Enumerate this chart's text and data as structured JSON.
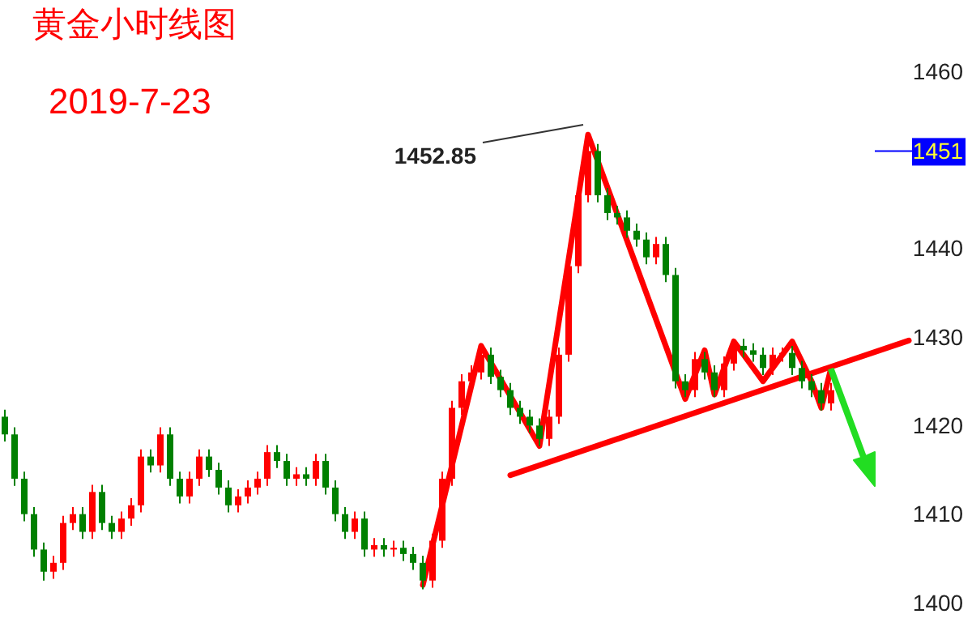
{
  "chart_data": {
    "type": "candlestick",
    "title": "黄金小时线图",
    "subtitle": "2019-7-23",
    "ylim": [
      1400,
      1460
    ],
    "yticks": [
      1400,
      1410,
      1420,
      1430,
      1440,
      1460
    ],
    "tick_labels": "y",
    "grid": false,
    "annotations": [
      "1452.85"
    ],
    "ref_lines": [
      {
        "axis": "y",
        "value": 1451,
        "label": "1451",
        "color": "#0000ff"
      }
    ],
    "categories": [
      null,
      null,
      null,
      null,
      null,
      null,
      null,
      null,
      null,
      null,
      null,
      null,
      null,
      null,
      null,
      null,
      null,
      null,
      null,
      null,
      null,
      null,
      null,
      null,
      null,
      null,
      null,
      null,
      null,
      null,
      null,
      null,
      null,
      null,
      null,
      null,
      null,
      null,
      null,
      null,
      null,
      null,
      null,
      null,
      null,
      null,
      null,
      null,
      null,
      null,
      null,
      null,
      null,
      null,
      null,
      null,
      null,
      null,
      null,
      null,
      null,
      null,
      null,
      null,
      null,
      null,
      null,
      null,
      null,
      null,
      null,
      null,
      null,
      null,
      null,
      null,
      null,
      null,
      null,
      null,
      null,
      null,
      null,
      null,
      null,
      null,
      null,
      null,
      null,
      null,
      null,
      null,
      null,
      null
    ],
    "ohlc": [
      [
        1421,
        1421.8,
        1418.2,
        1419
      ],
      [
        1419,
        1419.8,
        1413.2,
        1414
      ],
      [
        1414,
        1414.8,
        1409.2,
        1410
      ],
      [
        1410,
        1410.8,
        1405.2,
        1406
      ],
      [
        1406,
        1406.8,
        1402.5,
        1403.5
      ],
      [
        1403.5,
        1405.3,
        1402.7,
        1404.5
      ],
      [
        1404.5,
        1409.8,
        1403.7,
        1409
      ],
      [
        1409,
        1410.8,
        1408.2,
        1410
      ],
      [
        1410,
        1410.8,
        1407.2,
        1408
      ],
      [
        1408,
        1413.3,
        1407.2,
        1412.5
      ],
      [
        1412.5,
        1413.3,
        1408.2,
        1409
      ],
      [
        1409,
        1409.8,
        1407.2,
        1408
      ],
      [
        1408,
        1410.3,
        1407.2,
        1409.5
      ],
      [
        1409.5,
        1411.8,
        1408.7,
        1411
      ],
      [
        1411,
        1417.3,
        1410.2,
        1416.5
      ],
      [
        1416.5,
        1417.3,
        1414.7,
        1415.5
      ],
      [
        1415.5,
        1419.8,
        1414.7,
        1419
      ],
      [
        1419,
        1419.8,
        1413.2,
        1414
      ],
      [
        1414,
        1414.8,
        1411.2,
        1412
      ],
      [
        1412,
        1414.8,
        1411.2,
        1414
      ],
      [
        1414,
        1417.3,
        1413.2,
        1416.5
      ],
      [
        1416.5,
        1417.3,
        1414.2,
        1415
      ],
      [
        1415,
        1415.8,
        1412.2,
        1413
      ],
      [
        1413,
        1413.8,
        1410.2,
        1411
      ],
      [
        1411,
        1412.8,
        1410.2,
        1412
      ],
      [
        1412,
        1413.8,
        1411.2,
        1413
      ],
      [
        1413,
        1414.8,
        1412.2,
        1414
      ],
      [
        1414,
        1417.8,
        1413.2,
        1417
      ],
      [
        1417,
        1417.8,
        1415.2,
        1416
      ],
      [
        1416,
        1416.8,
        1413.2,
        1414
      ],
      [
        1414,
        1415.3,
        1413.2,
        1414.5
      ],
      [
        1414.5,
        1415.3,
        1413.2,
        1414
      ],
      [
        1414,
        1416.8,
        1413.2,
        1416
      ],
      [
        1416,
        1416.8,
        1412.2,
        1413
      ],
      [
        1413,
        1413.8,
        1409.2,
        1410
      ],
      [
        1410,
        1410.8,
        1407.2,
        1408
      ],
      [
        1408,
        1410.3,
        1407.2,
        1409.5
      ],
      [
        1409.5,
        1410.3,
        1405.2,
        1406
      ],
      [
        1406,
        1407.3,
        1405.2,
        1406.5
      ],
      [
        1406.5,
        1407.3,
        1405.2,
        1406
      ],
      [
        1406,
        1407,
        1405.2,
        1406.2
      ],
      [
        1406.2,
        1407,
        1404.7,
        1405.5
      ],
      [
        1405.5,
        1406.3,
        1403.7,
        1404.5
      ],
      [
        1404.5,
        1405.3,
        1401.5,
        1402.5
      ],
      [
        1402.5,
        1407.8,
        1401.7,
        1407
      ],
      [
        1407,
        1414.8,
        1406.2,
        1414
      ],
      [
        1414,
        1422.8,
        1413.2,
        1422
      ],
      [
        1422,
        1425.8,
        1421.2,
        1425
      ],
      [
        1425,
        1426.8,
        1424.2,
        1426
      ],
      [
        1426,
        1428.8,
        1425.2,
        1428
      ],
      [
        1428,
        1428.8,
        1424.7,
        1425.5
      ],
      [
        1425.5,
        1426.3,
        1423.2,
        1424
      ],
      [
        1424,
        1424.8,
        1421.2,
        1422
      ],
      [
        1422,
        1422.8,
        1420.2,
        1421
      ],
      [
        1421,
        1421.8,
        1419.2,
        1420
      ],
      [
        1420,
        1420.8,
        1417.7,
        1418.5
      ],
      [
        1418.5,
        1421.8,
        1417.7,
        1421
      ],
      [
        1421,
        1428.8,
        1420.2,
        1428
      ],
      [
        1428,
        1438.8,
        1427.2,
        1438
      ],
      [
        1438,
        1446.8,
        1437.2,
        1446
      ],
      [
        1446,
        1452.85,
        1445.2,
        1451
      ],
      [
        1451,
        1451.8,
        1445.2,
        1446
      ],
      [
        1446,
        1446.8,
        1443.2,
        1444
      ],
      [
        1444,
        1444.8,
        1442.7,
        1443.5
      ],
      [
        1443.5,
        1444.3,
        1441.2,
        1442
      ],
      [
        1442,
        1442.8,
        1440.2,
        1441
      ],
      [
        1441,
        1441.8,
        1438.2,
        1439
      ],
      [
        1439,
        1441.3,
        1438.2,
        1440.5
      ],
      [
        1440.5,
        1441.3,
        1436.2,
        1437
      ],
      [
        1437,
        1437.8,
        1424.2,
        1425
      ],
      [
        1425,
        1425.8,
        1423.2,
        1424
      ],
      [
        1424,
        1428.3,
        1423.2,
        1427.5
      ],
      [
        1427.5,
        1428.3,
        1425.2,
        1426
      ],
      [
        1426,
        1426.8,
        1423.2,
        1424
      ],
      [
        1424,
        1427.8,
        1423.2,
        1427
      ],
      [
        1427,
        1429.8,
        1426.2,
        1429
      ],
      [
        1429,
        1429.8,
        1427.7,
        1428.5
      ],
      [
        1428.5,
        1429.3,
        1427.2,
        1428
      ],
      [
        1428,
        1428.8,
        1425.7,
        1426.5
      ],
      [
        1426.5,
        1428.8,
        1425.7,
        1428
      ],
      [
        1428,
        1428.8,
        1427.2,
        1428.2
      ],
      [
        1428.2,
        1429,
        1425.7,
        1426.5
      ],
      [
        1426.5,
        1427.3,
        1424.2,
        1425
      ],
      [
        1425,
        1425.8,
        1423.2,
        1424
      ],
      [
        1424,
        1424.8,
        1421.7,
        1422.5
      ],
      [
        1422.5,
        1424.8,
        1421.7,
        1424
      ],
      null,
      null,
      null,
      null,
      null,
      null,
      null,
      null
    ],
    "colors": [
      "#008000",
      "#008000",
      "#008000",
      "#008000",
      "#008000",
      "#ff0000",
      "#ff0000",
      "#ff0000",
      "#008000",
      "#ff0000",
      "#008000",
      "#008000",
      "#ff0000",
      "#ff0000",
      "#ff0000",
      "#008000",
      "#ff0000",
      "#008000",
      "#008000",
      "#ff0000",
      "#ff0000",
      "#008000",
      "#008000",
      "#008000",
      "#ff0000",
      "#ff0000",
      "#ff0000",
      "#ff0000",
      "#008000",
      "#008000",
      "#ff0000",
      "#008000",
      "#ff0000",
      "#008000",
      "#008000",
      "#008000",
      "#ff0000",
      "#008000",
      "#ff0000",
      "#008000",
      "#ff0000",
      "#008000",
      "#008000",
      "#008000",
      "#ff0000",
      "#ff0000",
      "#ff0000",
      "#ff0000",
      "#ff0000",
      "#ff0000",
      "#008000",
      "#008000",
      "#008000",
      "#008000",
      "#008000",
      "#008000",
      "#ff0000",
      "#ff0000",
      "#ff0000",
      "#ff0000",
      "#ff0000",
      "#008000",
      "#008000",
      "#008000",
      "#008000",
      "#008000",
      "#008000",
      "#ff0000",
      "#008000",
      "#008000",
      "#008000",
      "#ff0000",
      "#008000",
      "#008000",
      "#ff0000",
      "#ff0000",
      "#008000",
      "#008000",
      "#008000",
      "#ff0000",
      "#ff0000",
      "#008000",
      "#008000",
      "#008000",
      "#008000",
      "#ff0000",
      null,
      null,
      null,
      null,
      null,
      null,
      null,
      null
    ],
    "series": [
      {
        "type": "line",
        "color": "#ff0000",
        "values": [
          null,
          null,
          null,
          null,
          null,
          null,
          null,
          null,
          null,
          null,
          null,
          null,
          null,
          null,
          null,
          null,
          null,
          null,
          null,
          null,
          null,
          null,
          null,
          null,
          null,
          null,
          null,
          null,
          null,
          null,
          null,
          null,
          null,
          null,
          null,
          null,
          null,
          null,
          null,
          null,
          null,
          null,
          null,
          1402,
          null,
          null,
          null,
          null,
          null,
          1429,
          null,
          null,
          null,
          null,
          null,
          1417.7,
          null,
          null,
          null,
          null,
          1452.85,
          null,
          null,
          null,
          null,
          null,
          null,
          null,
          null,
          null,
          1423,
          null,
          1428.5,
          1423.5,
          null,
          1429.5,
          null,
          null,
          1425,
          null,
          null,
          1429.5,
          null,
          1425,
          1422,
          1426.5,
          null,
          null,
          null,
          null,
          null,
          null,
          null,
          null
        ]
      },
      {
        "type": "line",
        "color": "#ff0000",
        "values": [
          null,
          null,
          null,
          null,
          null,
          null,
          null,
          null,
          null,
          null,
          null,
          null,
          null,
          null,
          null,
          null,
          null,
          null,
          null,
          null,
          null,
          null,
          null,
          null,
          null,
          null,
          null,
          null,
          null,
          null,
          null,
          null,
          null,
          null,
          null,
          null,
          null,
          null,
          null,
          null,
          null,
          null,
          null,
          null,
          null,
          null,
          null,
          null,
          null,
          null,
          null,
          null,
          1414.4,
          null,
          null,
          null,
          null,
          null,
          null,
          null,
          null,
          null,
          null,
          null,
          null,
          null,
          null,
          null,
          null,
          null,
          null,
          null,
          null,
          null,
          null,
          null,
          null,
          null,
          null,
          null,
          null,
          null,
          null,
          null,
          null,
          null,
          null,
          null,
          null,
          null,
          null,
          null,
          null,
          1429.6
        ]
      }
    ]
  }
}
